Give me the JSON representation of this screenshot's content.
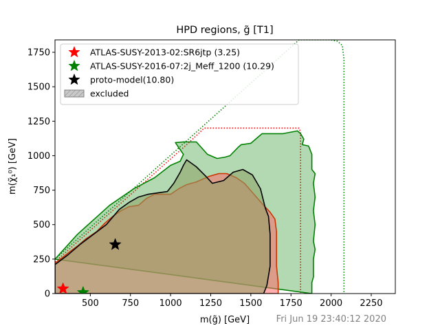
{
  "chart_data": {
    "type": "contour",
    "title": "HPD regions, g̃ [T1]",
    "xlabel": "m(g̃) [GeV]",
    "ylabel": "m(χ̃₁⁰) [GeV]",
    "xlim": [
      280,
      2400
    ],
    "ylim": [
      0,
      1840
    ],
    "xticks": [
      500,
      750,
      1000,
      1250,
      1500,
      1750,
      2000,
      2250
    ],
    "yticks": [
      0,
      250,
      500,
      750,
      1000,
      1250,
      1500,
      1750
    ],
    "grid": false,
    "legend_position": "top-left",
    "timestamp": "Fri Jun 19 23:40:12 2020",
    "legend": [
      {
        "label": "ATLAS-SUSY-2013-02:SR6jtp (3.25)",
        "marker": "star",
        "color": "#ff0000"
      },
      {
        "label": "ATLAS-SUSY-2016-07:2j_Meff_1200 (10.29)",
        "marker": "star",
        "color": "#008000"
      },
      {
        "label": "proto-model(10.80)",
        "marker": "star",
        "color": "#000000"
      },
      {
        "label": "excluded",
        "marker": "hatch-patch",
        "color": "#c0c0c0"
      }
    ],
    "points": [
      {
        "name": "ATLAS-SUSY-2013-02:SR6jtp",
        "x": 330,
        "y": 35,
        "color": "#ff0000"
      },
      {
        "name": "ATLAS-SUSY-2016-07:2j_Meff_1200",
        "x": 455,
        "y": 8,
        "color": "#008000"
      },
      {
        "name": "proto-model",
        "x": 655,
        "y": 355,
        "color": "#000000"
      }
    ],
    "regions": [
      {
        "name": "ATLAS-SUSY-2016-07 expected (dotted)",
        "color": "#008000",
        "style": "dotted",
        "fill": "none",
        "polygon": [
          [
            280,
            250
          ],
          [
            1800,
            1840
          ],
          [
            2000,
            1840
          ],
          [
            2040,
            1830
          ],
          [
            2070,
            1800
          ],
          [
            2080,
            1700
          ],
          [
            2080,
            0
          ]
        ]
      },
      {
        "name": "ATLAS-SUSY-2013-02 expected (dotted)",
        "color": "#ff0000",
        "style": "dotted",
        "fill": "none",
        "polygon": [
          [
            280,
            230
          ],
          [
            1100,
            1080
          ],
          [
            1210,
            1200
          ],
          [
            1800,
            1200
          ],
          [
            1810,
            1170
          ],
          [
            1810,
            0
          ]
        ]
      },
      {
        "name": "ATLAS-SUSY-2016-07 observed",
        "color": "#008000",
        "style": "solid",
        "fill": "rgba(0,128,0,0.30)",
        "polygon": [
          [
            280,
            250
          ],
          [
            420,
            430
          ],
          [
            620,
            640
          ],
          [
            770,
            760
          ],
          [
            900,
            840
          ],
          [
            1000,
            930
          ],
          [
            1060,
            960
          ],
          [
            1080,
            1010
          ],
          [
            1050,
            1060
          ],
          [
            1030,
            1095
          ],
          [
            1080,
            1100
          ],
          [
            1160,
            1100
          ],
          [
            1230,
            1010
          ],
          [
            1290,
            980
          ],
          [
            1340,
            990
          ],
          [
            1370,
            1000
          ],
          [
            1420,
            1060
          ],
          [
            1440,
            1080
          ],
          [
            1500,
            1090
          ],
          [
            1570,
            1160
          ],
          [
            1700,
            1160
          ],
          [
            1790,
            1180
          ],
          [
            1810,
            1160
          ],
          [
            1830,
            1120
          ],
          [
            1820,
            1080
          ],
          [
            1860,
            1070
          ],
          [
            1880,
            1010
          ],
          [
            1880,
            900
          ],
          [
            1900,
            870
          ],
          [
            1890,
            800
          ],
          [
            1900,
            700
          ],
          [
            1890,
            600
          ],
          [
            1900,
            500
          ],
          [
            1890,
            380
          ],
          [
            1900,
            320
          ],
          [
            1890,
            250
          ],
          [
            1890,
            120
          ],
          [
            1880,
            80
          ],
          [
            1880,
            0
          ]
        ]
      },
      {
        "name": "ATLAS-SUSY-2013-02 observed",
        "color": "#cc3300",
        "style": "solid",
        "fill": "rgba(255,105,105,0.55)",
        "polygon": [
          [
            280,
            220
          ],
          [
            330,
            265
          ],
          [
            380,
            310
          ],
          [
            420,
            345
          ],
          [
            470,
            395
          ],
          [
            540,
            450
          ],
          [
            590,
            510
          ],
          [
            640,
            560
          ],
          [
            690,
            600
          ],
          [
            740,
            630
          ],
          [
            800,
            640
          ],
          [
            850,
            690
          ],
          [
            900,
            720
          ],
          [
            940,
            720
          ],
          [
            1000,
            720
          ],
          [
            1050,
            760
          ],
          [
            1100,
            790
          ],
          [
            1160,
            810
          ],
          [
            1240,
            850
          ],
          [
            1300,
            870
          ],
          [
            1350,
            870
          ],
          [
            1410,
            840
          ],
          [
            1460,
            800
          ],
          [
            1520,
            720
          ],
          [
            1580,
            640
          ],
          [
            1620,
            590
          ],
          [
            1650,
            540
          ],
          [
            1660,
            450
          ],
          [
            1660,
            200
          ],
          [
            1670,
            80
          ],
          [
            1670,
            0
          ],
          [
            280,
            0
          ]
        ]
      },
      {
        "name": "proto-model excluded",
        "color": "#000000",
        "style": "solid",
        "fill": "rgba(140,160,100,0.55)",
        "polygon": [
          [
            280,
            210
          ],
          [
            360,
            280
          ],
          [
            440,
            360
          ],
          [
            520,
            430
          ],
          [
            600,
            500
          ],
          [
            680,
            610
          ],
          [
            740,
            660
          ],
          [
            800,
            700
          ],
          [
            860,
            720
          ],
          [
            920,
            730
          ],
          [
            980,
            740
          ],
          [
            1020,
            800
          ],
          [
            1060,
            880
          ],
          [
            1080,
            930
          ],
          [
            1100,
            970
          ],
          [
            1160,
            920
          ],
          [
            1220,
            850
          ],
          [
            1260,
            800
          ],
          [
            1330,
            820
          ],
          [
            1390,
            880
          ],
          [
            1450,
            900
          ],
          [
            1510,
            860
          ],
          [
            1560,
            760
          ],
          [
            1590,
            620
          ],
          [
            1610,
            560
          ],
          [
            1620,
            430
          ],
          [
            1620,
            200
          ],
          [
            1600,
            60
          ],
          [
            1580,
            0
          ],
          [
            280,
            0
          ]
        ]
      }
    ]
  }
}
